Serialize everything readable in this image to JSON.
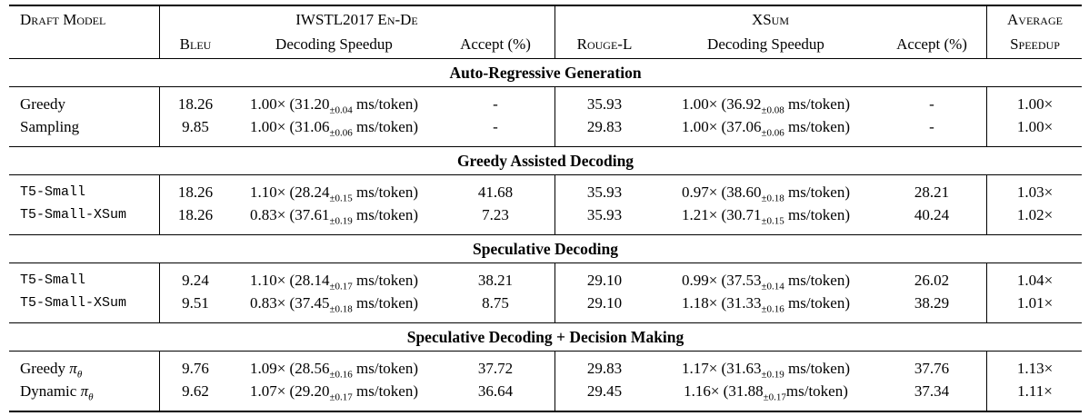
{
  "table": {
    "header": {
      "draft_model": "Draft Model",
      "group1": "IWSTL2017 En-De",
      "group2": "XSum",
      "bleu": "Bleu",
      "speedup1": "Decoding Speedup",
      "accept1": "Accept (%)",
      "rouge": "Rouge-L",
      "speedup2": "Decoding Speedup",
      "accept2": "Accept (%)",
      "avg_line1": "Average",
      "avg_line2": "Speedup"
    },
    "sections": [
      {
        "title": "Auto-Regressive Generation",
        "rows": [
          {
            "label": "Greedy",
            "math": "",
            "sub": "",
            "bleu": "18.26",
            "sp1_pre": "1.00× (31.20",
            "sp1_sub": "±0.04",
            "sp1_post": " ms/token)",
            "acc1": "-",
            "rouge": "35.93",
            "sp2_pre": "1.00× (36.92",
            "sp2_sub": "±0.08",
            "sp2_post": " ms/token)",
            "acc2": "-",
            "avg": "1.00×"
          },
          {
            "label": "Sampling",
            "math": "",
            "sub": "",
            "bleu": "9.85",
            "sp1_pre": "1.00× (31.06",
            "sp1_sub": "±0.06",
            "sp1_post": " ms/token)",
            "acc1": "-",
            "rouge": "29.83",
            "sp2_pre": "1.00× (37.06",
            "sp2_sub": "±0.06",
            "sp2_post": " ms/token)",
            "acc2": "-",
            "avg": "1.00×"
          }
        ]
      },
      {
        "title": "Greedy Assisted Decoding",
        "rows": [
          {
            "label": "T5-Small",
            "math": "",
            "sub": "",
            "bleu": "18.26",
            "sp1_pre": "1.10× (28.24",
            "sp1_sub": "±0.15",
            "sp1_post": " ms/token)",
            "acc1": "41.68",
            "rouge": "35.93",
            "sp2_pre": "0.97× (38.60",
            "sp2_sub": "±0.18",
            "sp2_post": " ms/token)",
            "acc2": "28.21",
            "avg": "1.03×"
          },
          {
            "label": "T5-Small-XSum",
            "math": "",
            "sub": "",
            "bleu": "18.26",
            "sp1_pre": "0.83× (37.61",
            "sp1_sub": "±0.19",
            "sp1_post": " ms/token)",
            "acc1": "7.23",
            "rouge": "35.93",
            "sp2_pre": "1.21× (30.71",
            "sp2_sub": "±0.15",
            "sp2_post": " ms/token)",
            "acc2": "40.24",
            "avg": "1.02×"
          }
        ]
      },
      {
        "title": "Speculative Decoding",
        "rows": [
          {
            "label": "T5-Small",
            "math": "",
            "sub": "",
            "bleu": "9.24",
            "sp1_pre": "1.10× (28.14",
            "sp1_sub": "±0.17",
            "sp1_post": " ms/token)",
            "acc1": "38.21",
            "rouge": "29.10",
            "sp2_pre": "0.99× (37.53",
            "sp2_sub": "±0.14",
            "sp2_post": " ms/token)",
            "acc2": "26.02",
            "avg": "1.04×"
          },
          {
            "label": "T5-Small-XSum",
            "math": "",
            "sub": "",
            "bleu": "9.51",
            "sp1_pre": "0.83× (37.45",
            "sp1_sub": "±0.18",
            "sp1_post": " ms/token)",
            "acc1": "8.75",
            "rouge": "29.10",
            "sp2_pre": "1.18× (31.33",
            "sp2_sub": "±0.16",
            "sp2_post": " ms/token)",
            "acc2": "38.29",
            "avg": "1.01×"
          }
        ]
      },
      {
        "title": "Speculative Decoding + Decision Making",
        "rows": [
          {
            "label": "Greedy ",
            "math": "π",
            "sub": "θ",
            "bleu": "9.76",
            "sp1_pre": "1.09× (28.56",
            "sp1_sub": "±0.16",
            "sp1_post": " ms/token)",
            "acc1": "37.72",
            "rouge": "29.83",
            "sp2_pre": "1.17× (31.63",
            "sp2_sub": "±0.19",
            "sp2_post": " ms/token)",
            "acc2": "37.76",
            "avg": "1.13×"
          },
          {
            "label": "Dynamic ",
            "math": "π",
            "sub": "θ",
            "bleu": "9.62",
            "sp1_pre": "1.07× (29.20",
            "sp1_sub": "±0.17",
            "sp1_post": " ms/token)",
            "acc1": "36.64",
            "rouge": "29.45",
            "sp2_pre": "1.16× (31.88",
            "sp2_sub": "±0.17",
            "sp2_post": "ms/token)",
            "acc2": "37.34",
            "avg": "1.11×"
          }
        ]
      }
    ]
  }
}
